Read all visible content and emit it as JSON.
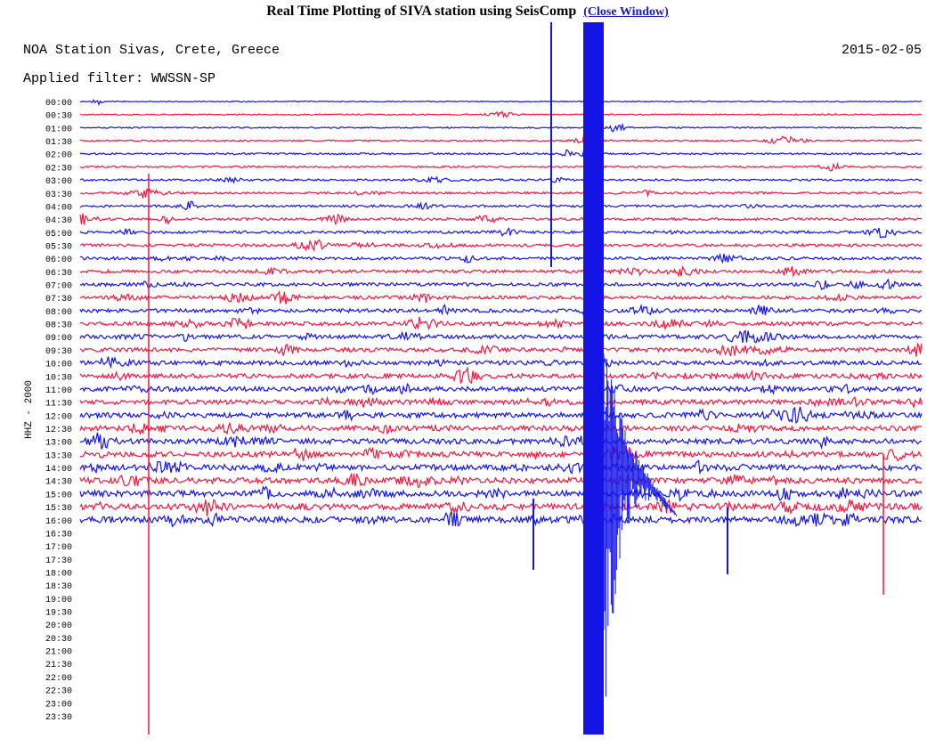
{
  "header": {
    "title": "Real Time Plotting of SIVA station using SeisComp",
    "link": "(Close Window)"
  },
  "plot": {
    "station": "NOA Station Sivas, Crete, Greece",
    "date": "2015-02-05",
    "filter": "Applied filter: WWSSN-SP",
    "channel": "HHZ - 2000",
    "trace_colors": [
      "#1414e6",
      "#f01840"
    ],
    "hour_labels": [
      "00:00",
      "00:30",
      "01:00",
      "01:30",
      "02:00",
      "02:30",
      "03:00",
      "03:30",
      "04:00",
      "04:30",
      "05:00",
      "05:30",
      "06:00",
      "06:30",
      "07:00",
      "07:30",
      "08:00",
      "08:30",
      "09:00",
      "09:30",
      "10:00",
      "10:30",
      "11:00",
      "11:30",
      "12:00",
      "12:30",
      "13:00",
      "13:30",
      "14:00",
      "14:30",
      "15:00",
      "15:30",
      "16:00",
      "16:30",
      "17:00",
      "17:30",
      "18:00",
      "18:30",
      "19:00",
      "19:30",
      "20:00",
      "20:30",
      "21:00",
      "21:30",
      "22:00",
      "22:30",
      "23:00",
      "23:30"
    ]
  }
}
